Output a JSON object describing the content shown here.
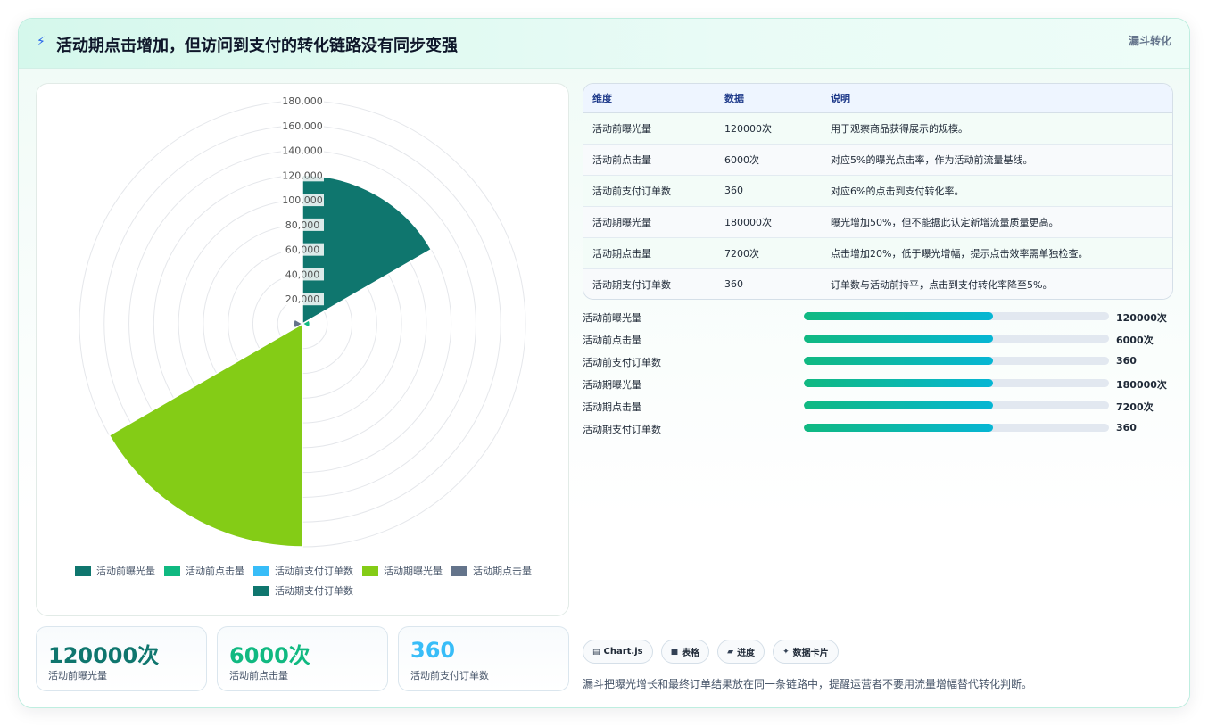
{
  "header": {
    "spark": "⚡",
    "title": "活动期点击增加，但访问到支付的转化链路没有同步变强",
    "tag": "漏斗转化"
  },
  "chart_data": {
    "type": "polarArea",
    "categories": [
      "活动前曝光量",
      "活动前点击量",
      "活动前支付订单数",
      "活动期曝光量",
      "活动期点击量",
      "活动期支付订单数"
    ],
    "values": [
      120000,
      6000,
      360,
      180000,
      7200,
      360
    ],
    "colors": [
      "#0f766e",
      "#10b981",
      "#38bdf8",
      "#84cc16",
      "#64748b",
      "#0f766e"
    ],
    "ticks": [
      "20,000",
      "40,000",
      "60,000",
      "80,000",
      "100,000",
      "120,000",
      "140,000",
      "160,000",
      "180,000"
    ],
    "rmax": 180000,
    "legend_position": "bottom",
    "grid": true
  },
  "table": {
    "headers": [
      "维度",
      "数据",
      "说明"
    ],
    "rows": [
      [
        "活动前曝光量",
        "120000次",
        "用于观察商品获得展示的规模。"
      ],
      [
        "活动前点击量",
        "6000次",
        "对应5%的曝光点击率，作为活动前流量基线。"
      ],
      [
        "活动前支付订单数",
        "360",
        "对应6%的点击到支付转化率。"
      ],
      [
        "活动期曝光量",
        "180000次",
        "曝光增加50%，但不能据此认定新增流量质量更高。"
      ],
      [
        "活动期点击量",
        "7200次",
        "点击增加20%，低于曝光增幅，提示点击效率需单独检查。"
      ],
      [
        "活动期支付订单数",
        "360",
        "订单数与活动前持平，点击到支付转化率降至5%。"
      ]
    ]
  },
  "progress": [
    {
      "label": "活动前曝光量",
      "value": "120000次",
      "fraction": 0.62
    },
    {
      "label": "活动前点击量",
      "value": "6000次",
      "fraction": 0.62
    },
    {
      "label": "活动前支付订单数",
      "value": "360",
      "fraction": 0.62
    },
    {
      "label": "活动期曝光量",
      "value": "180000次",
      "fraction": 0.62
    },
    {
      "label": "活动期点击量",
      "value": "7200次",
      "fraction": 0.62
    },
    {
      "label": "活动期支付订单数",
      "value": "360",
      "fraction": 0.62
    }
  ],
  "stats": [
    {
      "value": "120000次",
      "label": "活动前曝光量",
      "color": "#0f766e"
    },
    {
      "value": "6000次",
      "label": "活动前点击量",
      "color": "#10b981"
    },
    {
      "value": "360",
      "label": "活动前支付订单数",
      "color": "#38bdf8"
    }
  ],
  "badges": [
    {
      "icon": "▤",
      "icon_name": "chart-icon",
      "label": "Chart.js"
    },
    {
      "icon": "■",
      "icon_name": "table-icon",
      "label": "表格"
    },
    {
      "icon": "▰",
      "icon_name": "progress-icon",
      "label": "进度"
    },
    {
      "icon": "✦",
      "icon_name": "sparkle-icon",
      "label": "数据卡片"
    }
  ],
  "footnote": "漏斗把曝光增长和最终订单结果放在同一条链路中，提醒运营者不要用流量增幅替代转化判断。"
}
